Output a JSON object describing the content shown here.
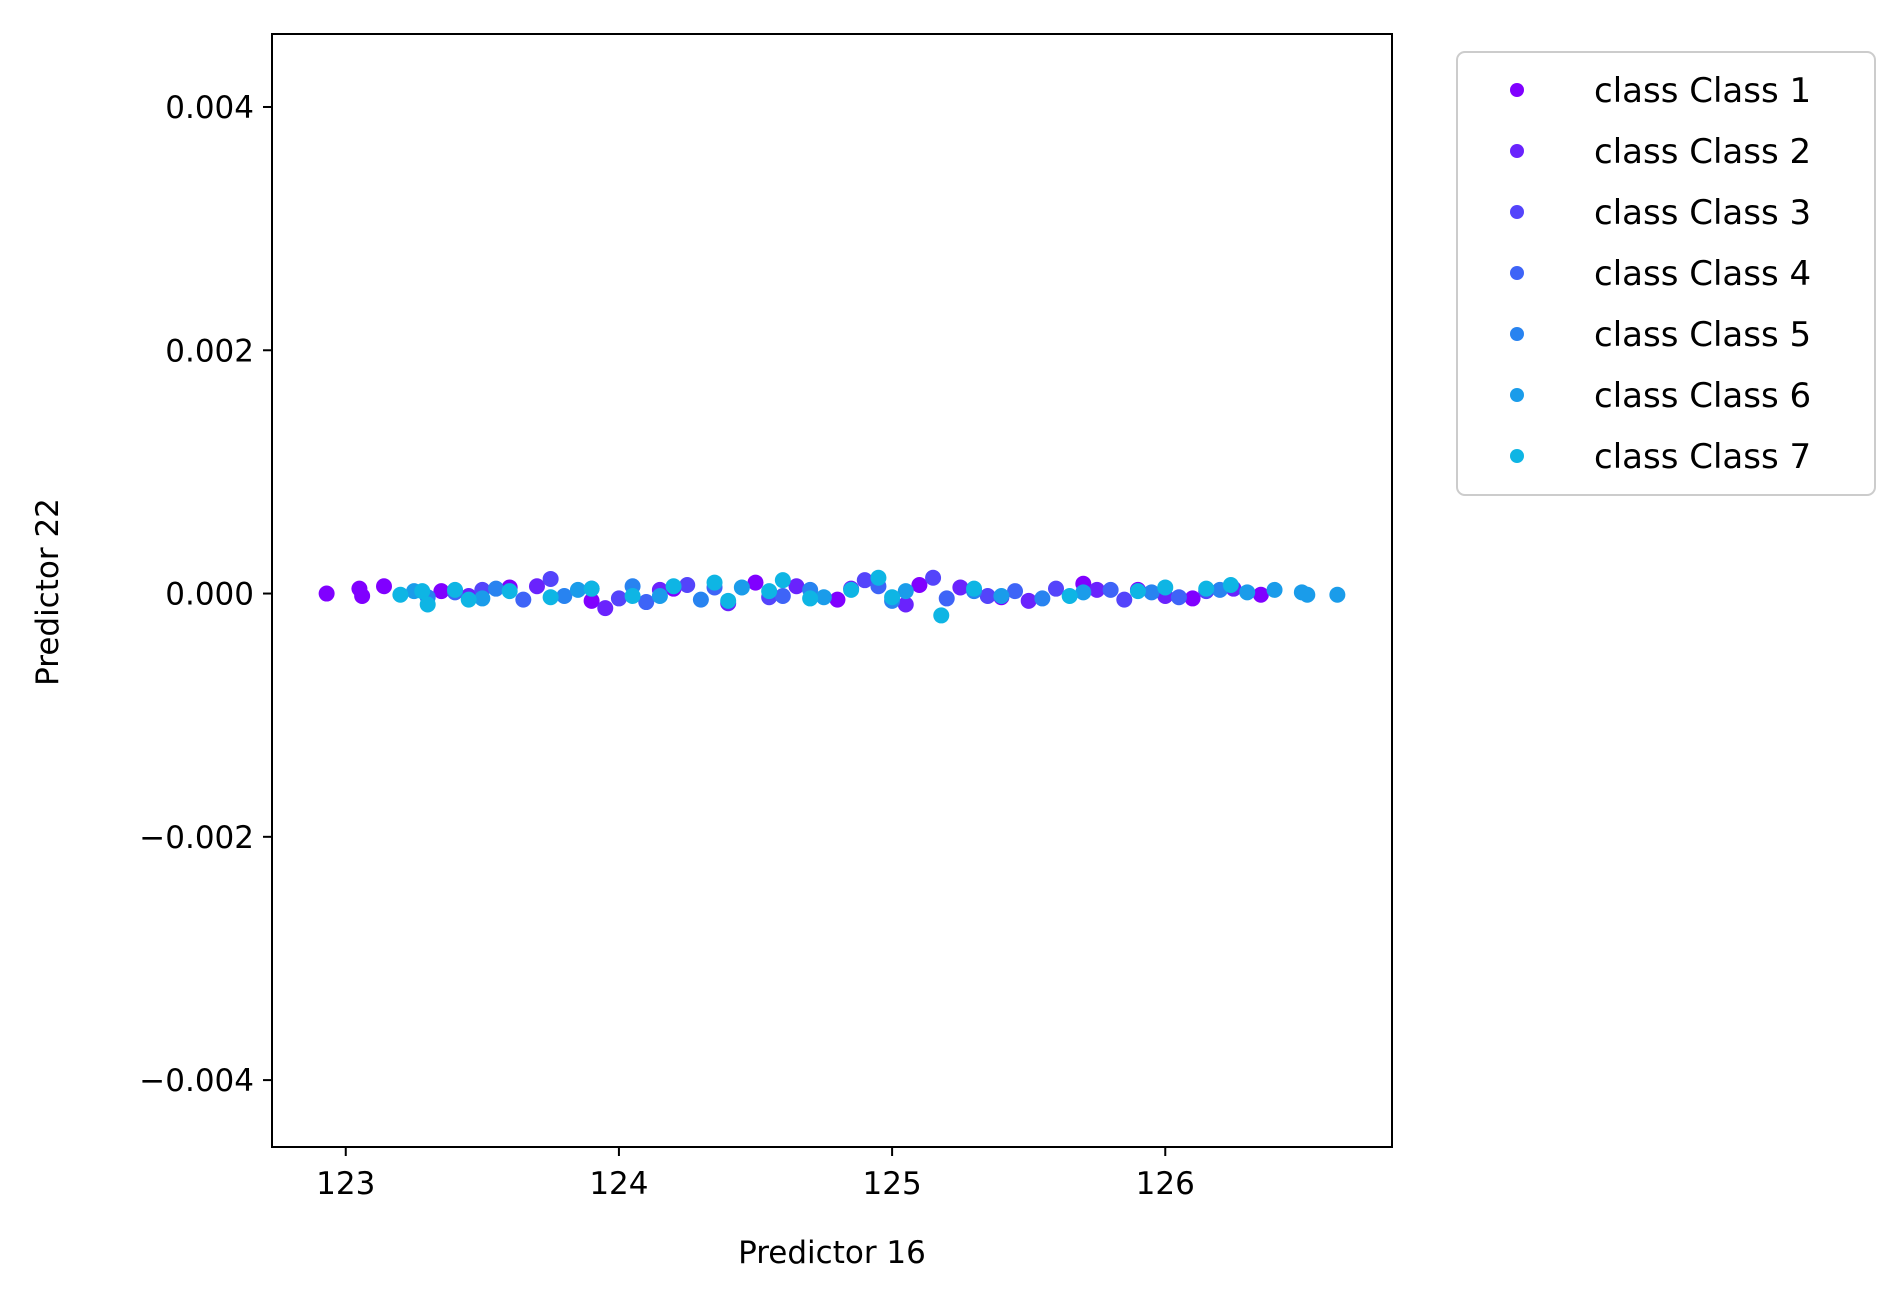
{
  "chart_data": {
    "type": "scatter",
    "title": "",
    "xlabel": "Predictor 16",
    "ylabel": "Predictor 22",
    "xlim": [
      122.73,
      126.83
    ],
    "ylim": [
      -0.00455,
      0.0046
    ],
    "xticks": [
      123,
      124,
      125,
      126
    ],
    "xtick_labels": [
      "123",
      "124",
      "125",
      "126"
    ],
    "yticks": [
      -0.004,
      -0.002,
      0.0,
      0.002,
      0.004
    ],
    "ytick_labels": [
      "−0.004",
      "−0.002",
      "0.000",
      "0.002",
      "0.004"
    ],
    "grid": false,
    "legend_position": "outside-top-right",
    "series": [
      {
        "name": "class Class 1",
        "color": "#8000ff",
        "points": [
          [
            122.93,
            0.0
          ],
          [
            123.05,
            4e-05
          ],
          [
            123.06,
            -2e-05
          ],
          [
            123.14,
            6e-05
          ],
          [
            123.35,
            2e-05
          ],
          [
            123.6,
            5e-05
          ],
          [
            123.9,
            -6e-05
          ],
          [
            124.2,
            4e-05
          ],
          [
            124.5,
            9e-05
          ],
          [
            124.8,
            -5e-05
          ],
          [
            125.1,
            7e-05
          ],
          [
            125.4,
            -3e-05
          ],
          [
            125.7,
            8e-05
          ],
          [
            125.9,
            3e-05
          ],
          [
            126.1,
            -4e-05
          ],
          [
            126.35,
            -1e-05
          ]
        ]
      },
      {
        "name": "class Class 2",
        "color": "#6a23fd",
        "points": [
          [
            123.45,
            -2e-05
          ],
          [
            123.7,
            6e-05
          ],
          [
            123.95,
            -0.00012
          ],
          [
            124.15,
            3e-05
          ],
          [
            124.4,
            -8e-05
          ],
          [
            124.65,
            6e-05
          ],
          [
            124.85,
            4e-05
          ],
          [
            125.05,
            -9e-05
          ],
          [
            125.25,
            5e-05
          ],
          [
            125.5,
            -6e-05
          ],
          [
            125.75,
            3e-05
          ],
          [
            126.0,
            -2e-05
          ],
          [
            126.25,
            4e-05
          ]
        ]
      },
      {
        "name": "class Class 3",
        "color": "#5444fb",
        "points": [
          [
            123.5,
            3e-05
          ],
          [
            123.75,
            0.00012
          ],
          [
            124.0,
            -4e-05
          ],
          [
            124.25,
            7e-05
          ],
          [
            124.55,
            -3e-05
          ],
          [
            124.9,
            0.00011
          ],
          [
            125.15,
            0.00013
          ],
          [
            125.35,
            -2e-05
          ],
          [
            125.6,
            4e-05
          ],
          [
            125.85,
            -5e-05
          ],
          [
            126.15,
            2e-05
          ]
        ]
      },
      {
        "name": "class Class 4",
        "color": "#3e64f7",
        "points": [
          [
            123.4,
            1e-05
          ],
          [
            123.65,
            -5e-05
          ],
          [
            123.9,
            4e-05
          ],
          [
            124.1,
            -7e-05
          ],
          [
            124.35,
            5e-05
          ],
          [
            124.6,
            -2e-05
          ],
          [
            124.95,
            6e-05
          ],
          [
            125.2,
            -4e-05
          ],
          [
            125.45,
            2e-05
          ],
          [
            125.8,
            3e-05
          ],
          [
            126.05,
            -3e-05
          ]
        ]
      },
      {
        "name": "class Class 5",
        "color": "#2883f0",
        "points": [
          [
            123.3,
            -3e-05
          ],
          [
            123.55,
            4e-05
          ],
          [
            123.8,
            -2e-05
          ],
          [
            124.05,
            6e-05
          ],
          [
            124.3,
            -5e-05
          ],
          [
            124.7,
            3e-05
          ],
          [
            125.0,
            -6e-05
          ],
          [
            125.3,
            2e-05
          ],
          [
            125.55,
            -4e-05
          ],
          [
            125.95,
            1e-05
          ],
          [
            126.2,
            3e-05
          ]
        ]
      },
      {
        "name": "class Class 6",
        "color": "#1a9cea",
        "points": [
          [
            123.25,
            2e-05
          ],
          [
            123.5,
            -4e-05
          ],
          [
            123.85,
            3e-05
          ],
          [
            124.15,
            -2e-05
          ],
          [
            124.45,
            5e-05
          ],
          [
            124.75,
            -3e-05
          ],
          [
            125.05,
            2e-05
          ],
          [
            125.4,
            -2e-05
          ],
          [
            125.7,
            1e-05
          ],
          [
            126.3,
            1e-05
          ],
          [
            126.4,
            3e-05
          ],
          [
            126.5,
            1e-05
          ],
          [
            126.52,
            -1e-05
          ],
          [
            126.63,
            -1e-05
          ]
        ]
      },
      {
        "name": "class Class 7",
        "color": "#0eb5e4",
        "points": [
          [
            123.2,
            -1e-05
          ],
          [
            123.28,
            2e-05
          ],
          [
            123.3,
            -9e-05
          ],
          [
            123.4,
            3e-05
          ],
          [
            123.45,
            -5e-05
          ],
          [
            123.6,
            2e-05
          ],
          [
            123.75,
            -3e-05
          ],
          [
            123.9,
            4e-05
          ],
          [
            124.05,
            -2e-05
          ],
          [
            124.2,
            6e-05
          ],
          [
            124.35,
            9e-05
          ],
          [
            124.4,
            -6e-05
          ],
          [
            124.55,
            2e-05
          ],
          [
            124.6,
            0.00011
          ],
          [
            124.7,
            -4e-05
          ],
          [
            124.85,
            3e-05
          ],
          [
            124.95,
            0.00013
          ],
          [
            125.0,
            -3e-05
          ],
          [
            125.18,
            -0.00018
          ],
          [
            125.3,
            4e-05
          ],
          [
            125.65,
            -2e-05
          ],
          [
            125.9,
            2e-05
          ],
          [
            126.0,
            5e-05
          ],
          [
            126.15,
            4e-05
          ],
          [
            126.24,
            7e-05
          ]
        ]
      }
    ]
  }
}
